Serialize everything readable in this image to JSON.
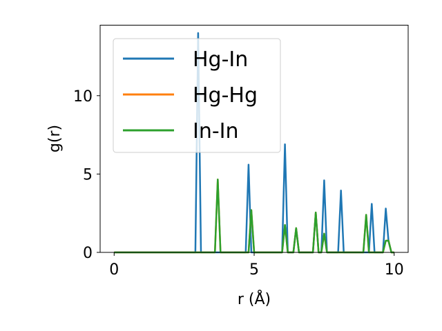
{
  "chart_data": {
    "type": "line",
    "title": "",
    "xlabel": "r (Å)",
    "ylabel": "g(r)",
    "xlim": [
      -0.5,
      10.5
    ],
    "ylim": [
      0,
      14.5
    ],
    "xticks": [
      0,
      5,
      10
    ],
    "yticks": [
      0,
      5,
      10
    ],
    "xtick_labels": [
      "0",
      "5",
      "10"
    ],
    "ytick_labels": [
      "0",
      "5",
      "10"
    ],
    "grid": false,
    "legend_position": "upper-left",
    "series": [
      {
        "name": "Hg-In",
        "color": "#1f77b4",
        "x": [
          0,
          2.9,
          3.0,
          3.1,
          3.2,
          4.7,
          4.8,
          4.9,
          6.0,
          6.1,
          6.2,
          6.4,
          6.5,
          6.6,
          7.1,
          7.2,
          7.3,
          7.4,
          7.5,
          7.6,
          8.0,
          8.1,
          8.2,
          9.1,
          9.2,
          9.3,
          9.6,
          9.7,
          9.8,
          9.9,
          10.0
        ],
        "values": [
          0,
          0,
          14,
          0,
          0,
          0,
          5.6,
          0,
          0,
          6.9,
          0,
          0,
          1.5,
          0,
          0,
          2.5,
          0,
          0,
          4.6,
          0,
          0,
          3.95,
          0,
          0,
          3.1,
          0,
          0,
          2.8,
          0.7,
          0,
          0
        ]
      },
      {
        "name": "Hg-Hg",
        "color": "#ff7f0e",
        "x": [
          0,
          3.6,
          3.7,
          3.8,
          4.8,
          4.9,
          5.0,
          6.0,
          6.1,
          6.2,
          6.4,
          6.5,
          6.6,
          7.1,
          7.2,
          7.3,
          7.4,
          7.5,
          7.6,
          8.9,
          9.0,
          9.1,
          9.6,
          9.7,
          9.8,
          9.9,
          10.0
        ],
        "values": [
          0,
          0,
          4.65,
          0,
          0,
          2.7,
          0,
          0,
          1.75,
          0,
          0,
          1.55,
          0,
          0,
          2.55,
          0,
          0,
          1.2,
          0,
          0,
          2.4,
          0,
          0,
          0.75,
          0.75,
          0,
          0
        ]
      },
      {
        "name": "In-In",
        "color": "#2ca02c",
        "x": [
          0,
          3.6,
          3.7,
          3.8,
          4.8,
          4.9,
          5.0,
          6.0,
          6.1,
          6.2,
          6.4,
          6.5,
          6.6,
          7.1,
          7.2,
          7.3,
          7.4,
          7.5,
          7.6,
          8.9,
          9.0,
          9.1,
          9.6,
          9.7,
          9.8,
          9.9,
          10.0
        ],
        "values": [
          0,
          0,
          4.65,
          0,
          0,
          2.7,
          0,
          0,
          1.75,
          0,
          0,
          1.55,
          0,
          0,
          2.55,
          0,
          0,
          1.2,
          0,
          0,
          2.4,
          0,
          0,
          0.75,
          0.75,
          0,
          0
        ]
      }
    ]
  }
}
